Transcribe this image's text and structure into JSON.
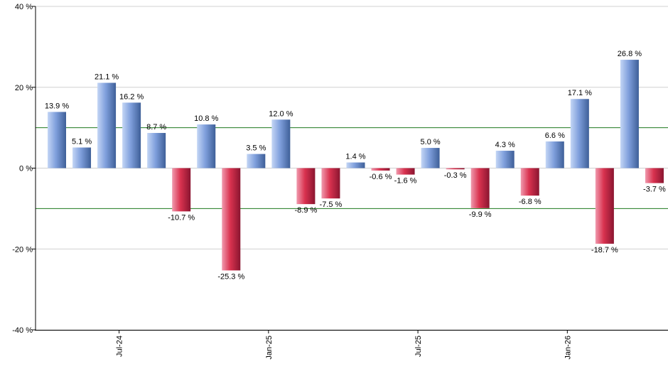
{
  "chart_data": {
    "type": "bar",
    "title": "",
    "xlabel": "",
    "ylabel": "",
    "ylim": [
      -40,
      40
    ],
    "y_ticks": [
      40,
      20,
      0,
      -20,
      -40
    ],
    "y_tick_labels": [
      "40 %",
      "20 %",
      "0 %",
      "-20 %",
      "-40 %"
    ],
    "x_tick_labels": [
      {
        "label": "Jul-24",
        "after_bar": 2
      },
      {
        "label": "Jan-25",
        "after_bar": 8
      },
      {
        "label": "Jul-25",
        "after_bar": 14
      },
      {
        "label": "Jan-26",
        "after_bar": 20
      }
    ],
    "reference_lines": [
      10,
      -10
    ],
    "values": [
      13.9,
      5.1,
      21.1,
      16.2,
      8.7,
      -10.7,
      10.8,
      -25.3,
      3.5,
      12.0,
      -8.9,
      -7.5,
      1.4,
      -0.6,
      -1.6,
      5.0,
      -0.3,
      -9.9,
      4.3,
      -6.8,
      6.6,
      17.1,
      -18.7,
      26.8,
      -3.7
    ],
    "value_labels": [
      "13.9 %",
      "5.1 %",
      "21.1 %",
      "16.2 %",
      "8.7 %",
      "-10.7 %",
      "10.8 %",
      "-25.3 %",
      "3.5 %",
      "12.0 %",
      "-8.9 %",
      "-7.5 %",
      "1.4 %",
      "-0.6 %",
      "-1.6 %",
      "5.0 %",
      "-0.3 %",
      "-9.9 %",
      "4.3 %",
      "-6.8 %",
      "6.6 %",
      "17.1 %",
      "-18.7 %",
      "26.8 %",
      "-3.7 %"
    ],
    "grid": true,
    "colors": {
      "positive_light": "#c4d6f5",
      "positive_mid": "#7f9fdc",
      "positive_dark": "#3e5f98",
      "negative_light": "#f09aae",
      "negative_mid": "#d9324f",
      "negative_dark": "#8a1530",
      "reference_line": "#1e7a1e",
      "gridline": "#d0d0d0",
      "axis": "#000000"
    }
  }
}
